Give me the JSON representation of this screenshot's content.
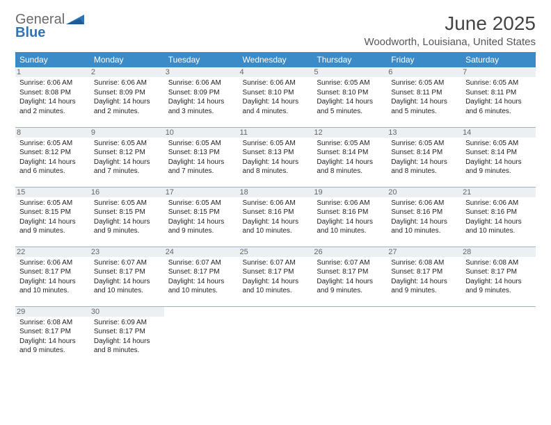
{
  "logo": {
    "word1": "General",
    "word2": "Blue"
  },
  "title": "June 2025",
  "location": "Woodworth, Louisiana, United States",
  "colors": {
    "header_bg": "#3b8bc9",
    "header_fg": "#ffffff",
    "daynum_bg": "#edf0f2",
    "logo_gray": "#6a6a6a",
    "logo_blue": "#2f75b5",
    "row_divider": "#9bb4c9"
  },
  "typography": {
    "title_fontsize": 28,
    "location_fontsize": 15,
    "dayhead_fontsize": 12,
    "daynum_fontsize": 11,
    "body_fontsize": 10
  },
  "day_headers": [
    "Sunday",
    "Monday",
    "Tuesday",
    "Wednesday",
    "Thursday",
    "Friday",
    "Saturday"
  ],
  "days": {
    "1": {
      "sunrise": "6:06 AM",
      "sunset": "8:08 PM",
      "daylight": "14 hours and 2 minutes."
    },
    "2": {
      "sunrise": "6:06 AM",
      "sunset": "8:09 PM",
      "daylight": "14 hours and 2 minutes."
    },
    "3": {
      "sunrise": "6:06 AM",
      "sunset": "8:09 PM",
      "daylight": "14 hours and 3 minutes."
    },
    "4": {
      "sunrise": "6:06 AM",
      "sunset": "8:10 PM",
      "daylight": "14 hours and 4 minutes."
    },
    "5": {
      "sunrise": "6:05 AM",
      "sunset": "8:10 PM",
      "daylight": "14 hours and 5 minutes."
    },
    "6": {
      "sunrise": "6:05 AM",
      "sunset": "8:11 PM",
      "daylight": "14 hours and 5 minutes."
    },
    "7": {
      "sunrise": "6:05 AM",
      "sunset": "8:11 PM",
      "daylight": "14 hours and 6 minutes."
    },
    "8": {
      "sunrise": "6:05 AM",
      "sunset": "8:12 PM",
      "daylight": "14 hours and 6 minutes."
    },
    "9": {
      "sunrise": "6:05 AM",
      "sunset": "8:12 PM",
      "daylight": "14 hours and 7 minutes."
    },
    "10": {
      "sunrise": "6:05 AM",
      "sunset": "8:13 PM",
      "daylight": "14 hours and 7 minutes."
    },
    "11": {
      "sunrise": "6:05 AM",
      "sunset": "8:13 PM",
      "daylight": "14 hours and 8 minutes."
    },
    "12": {
      "sunrise": "6:05 AM",
      "sunset": "8:14 PM",
      "daylight": "14 hours and 8 minutes."
    },
    "13": {
      "sunrise": "6:05 AM",
      "sunset": "8:14 PM",
      "daylight": "14 hours and 8 minutes."
    },
    "14": {
      "sunrise": "6:05 AM",
      "sunset": "8:14 PM",
      "daylight": "14 hours and 9 minutes."
    },
    "15": {
      "sunrise": "6:05 AM",
      "sunset": "8:15 PM",
      "daylight": "14 hours and 9 minutes."
    },
    "16": {
      "sunrise": "6:05 AM",
      "sunset": "8:15 PM",
      "daylight": "14 hours and 9 minutes."
    },
    "17": {
      "sunrise": "6:05 AM",
      "sunset": "8:15 PM",
      "daylight": "14 hours and 9 minutes."
    },
    "18": {
      "sunrise": "6:06 AM",
      "sunset": "8:16 PM",
      "daylight": "14 hours and 10 minutes."
    },
    "19": {
      "sunrise": "6:06 AM",
      "sunset": "8:16 PM",
      "daylight": "14 hours and 10 minutes."
    },
    "20": {
      "sunrise": "6:06 AM",
      "sunset": "8:16 PM",
      "daylight": "14 hours and 10 minutes."
    },
    "21": {
      "sunrise": "6:06 AM",
      "sunset": "8:16 PM",
      "daylight": "14 hours and 10 minutes."
    },
    "22": {
      "sunrise": "6:06 AM",
      "sunset": "8:17 PM",
      "daylight": "14 hours and 10 minutes."
    },
    "23": {
      "sunrise": "6:07 AM",
      "sunset": "8:17 PM",
      "daylight": "14 hours and 10 minutes."
    },
    "24": {
      "sunrise": "6:07 AM",
      "sunset": "8:17 PM",
      "daylight": "14 hours and 10 minutes."
    },
    "25": {
      "sunrise": "6:07 AM",
      "sunset": "8:17 PM",
      "daylight": "14 hours and 10 minutes."
    },
    "26": {
      "sunrise": "6:07 AM",
      "sunset": "8:17 PM",
      "daylight": "14 hours and 9 minutes."
    },
    "27": {
      "sunrise": "6:08 AM",
      "sunset": "8:17 PM",
      "daylight": "14 hours and 9 minutes."
    },
    "28": {
      "sunrise": "6:08 AM",
      "sunset": "8:17 PM",
      "daylight": "14 hours and 9 minutes."
    },
    "29": {
      "sunrise": "6:08 AM",
      "sunset": "8:17 PM",
      "daylight": "14 hours and 9 minutes."
    },
    "30": {
      "sunrise": "6:09 AM",
      "sunset": "8:17 PM",
      "daylight": "14 hours and 8 minutes."
    }
  },
  "labels": {
    "sunrise": "Sunrise: ",
    "sunset": "Sunset: ",
    "daylight": "Daylight: "
  }
}
